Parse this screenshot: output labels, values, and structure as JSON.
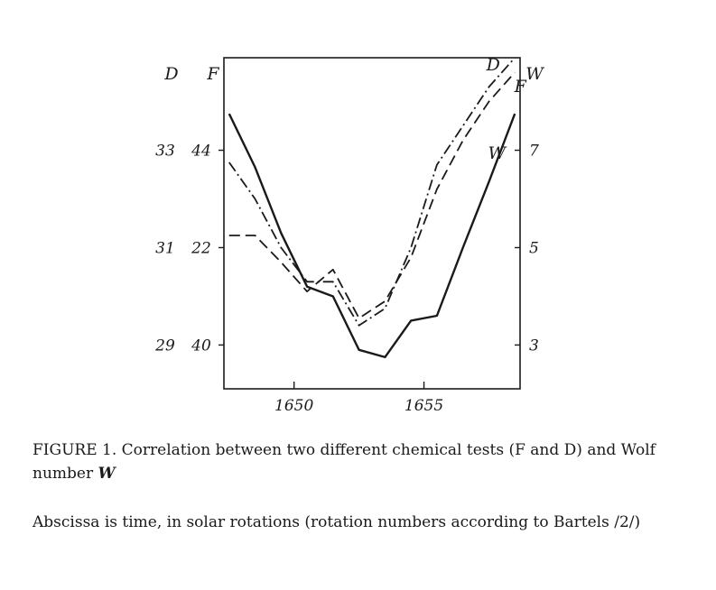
{
  "chart_data": {
    "type": "line",
    "xlabel": "",
    "x": [
      1647.5,
      1648.5,
      1649.5,
      1650.5,
      1651.5,
      1652.5,
      1653.5,
      1654.5,
      1655.5,
      1656.5,
      1657.5,
      1658.5
    ],
    "x_ticks": [
      "1650",
      "1655"
    ],
    "x_tick_values": [
      1650,
      1655
    ],
    "xlim": [
      1647.3,
      1658.7
    ],
    "left_axes": [
      {
        "label": "D",
        "ticks": [
          "33",
          "31",
          "29"
        ],
        "tick_values": [
          33,
          31,
          29
        ],
        "ylim": [
          28.1,
          34.9
        ]
      },
      {
        "label": "F",
        "ticks": [
          "44",
          "22",
          "40"
        ]
      }
    ],
    "right_axis": {
      "label": "W",
      "ticks": [
        "7",
        "5",
        "3"
      ],
      "tick_values": [
        7,
        5,
        3
      ],
      "ylim": [
        2.1,
        8.9
      ]
    },
    "series": [
      {
        "name": "D",
        "style": "dashdot",
        "axis": "left",
        "ylim": [
          28.1,
          34.9
        ],
        "x": [
          1647.5,
          1648.5,
          1649.5,
          1650.5,
          1651.5,
          1652.5,
          1653.5,
          1654.5,
          1655.5,
          1656.5,
          1657.5,
          1658.5
        ],
        "values": [
          32.75,
          32.0,
          31.0,
          30.3,
          30.3,
          29.4,
          29.75,
          31.0,
          32.7,
          33.5,
          34.3,
          34.9
        ]
      },
      {
        "name": "F",
        "style": "dashed",
        "axis": "left",
        "ylim": [
          28.1,
          34.9
        ],
        "x": [
          1647.5,
          1648.5,
          1649.5,
          1650.5,
          1651.5,
          1652.5,
          1653.5,
          1654.5,
          1655.5,
          1656.5,
          1657.5,
          1658.5
        ],
        "values": [
          31.25,
          31.25,
          30.7,
          30.1,
          30.55,
          29.55,
          29.9,
          30.8,
          32.2,
          33.2,
          34.0,
          34.6
        ]
      },
      {
        "name": "W",
        "style": "solid",
        "axis": "right",
        "ylim": [
          2.1,
          8.9
        ],
        "x": [
          1647.5,
          1648.5,
          1649.5,
          1650.5,
          1651.5,
          1652.5,
          1653.5,
          1654.5,
          1655.5,
          1656.5,
          1657.5,
          1658.5
        ],
        "values": [
          7.75,
          6.65,
          5.3,
          4.2,
          4.0,
          2.9,
          2.75,
          3.5,
          3.6,
          5.0,
          6.35,
          7.75
        ]
      }
    ],
    "grid": false
  },
  "caption": {
    "line1": "FIGURE 1.  Correlation between two different chemical tests (F and D) and Wolf number ",
    "w_symbol": "W",
    "line2": "Abscissa is time, in solar rotations (rotation numbers according to Bartels /2/)"
  },
  "colors": {
    "ink": "#1a1a1a"
  }
}
